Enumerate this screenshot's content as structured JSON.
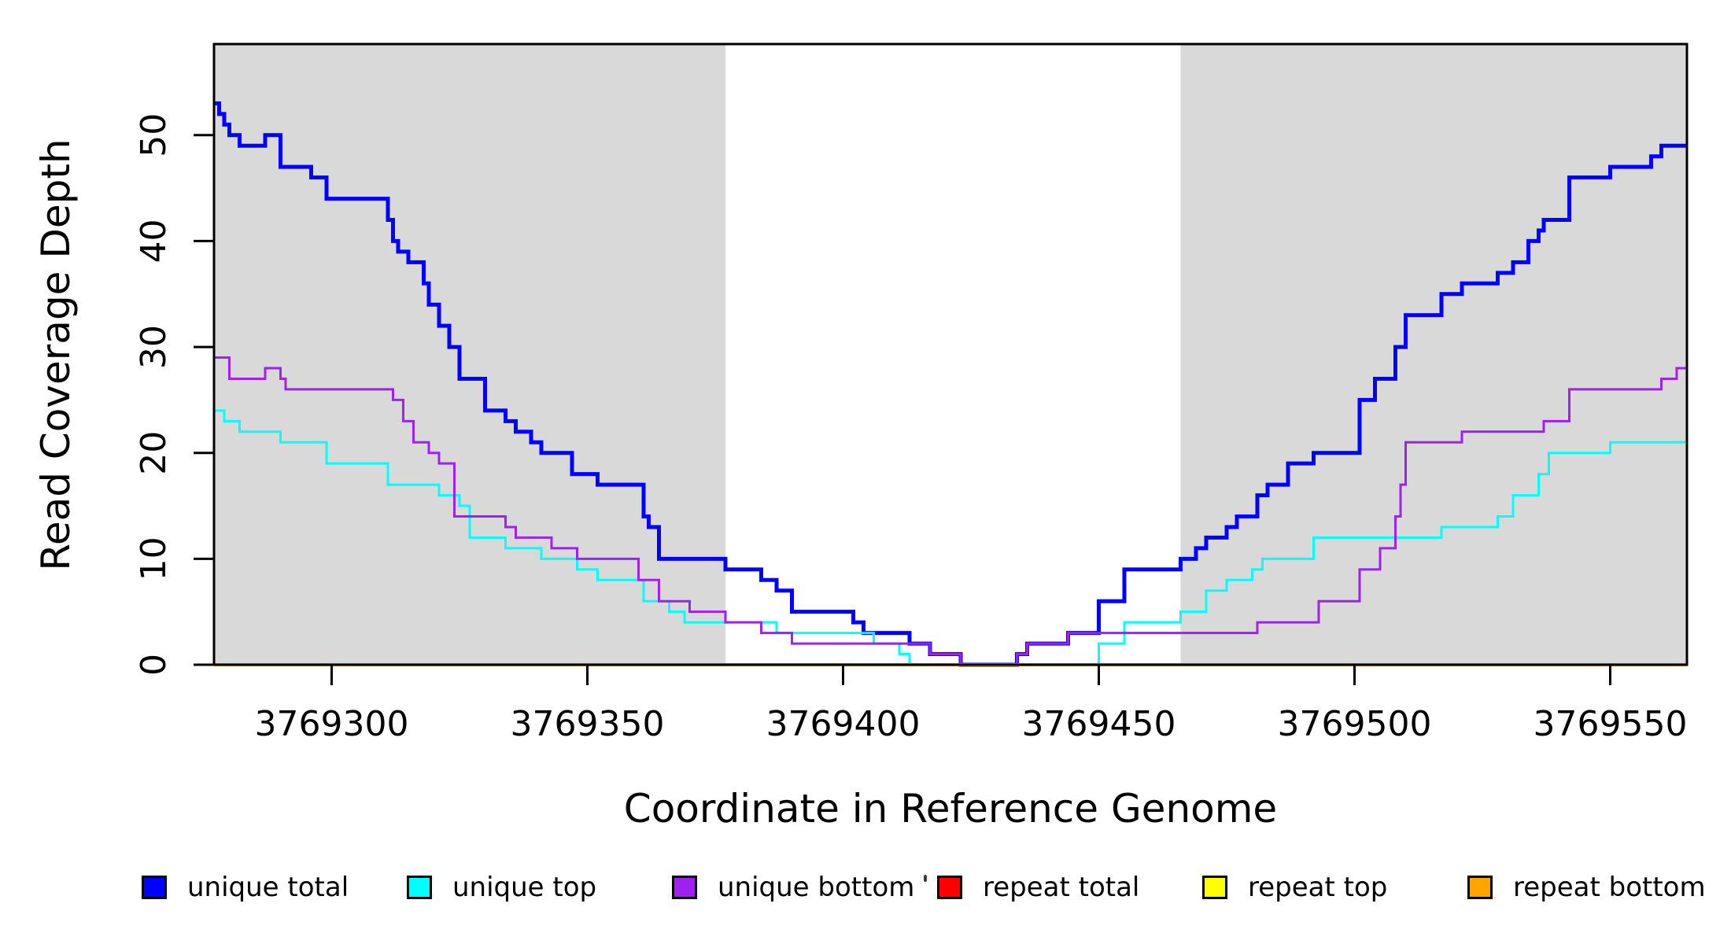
{
  "figure": {
    "xlabel": "Coordinate in Reference Genome",
    "ylabel": "Read Coverage Depth"
  },
  "chart_data": {
    "type": "line",
    "subtype": "step",
    "title": "",
    "xlabel": "Coordinate in Reference Genome",
    "ylabel": "Read Coverage Depth",
    "grid": false,
    "legend_position": "bottom",
    "xlim": [
      3769277,
      3769565
    ],
    "ylim": [
      0,
      58.6
    ],
    "x_ticks": [
      3769300,
      3769350,
      3769400,
      3769450,
      3769500,
      3769550
    ],
    "y_ticks": [
      0,
      10,
      20,
      30,
      40,
      50
    ],
    "background_color": "#ffffff",
    "shaded_regions": [
      {
        "x0": 3769277,
        "x1": 3769377,
        "color": "#D9D9D9"
      },
      {
        "x0": 3769466,
        "x1": 3769565,
        "color": "#D9D9D9"
      }
    ],
    "series": [
      {
        "name": "unique total",
        "color": "#0000FF",
        "width": 5,
        "points": [
          [
            3769277,
            53
          ],
          [
            3769278,
            52
          ],
          [
            3769279,
            51
          ],
          [
            3769280,
            50
          ],
          [
            3769282,
            49
          ],
          [
            3769287,
            50
          ],
          [
            3769290,
            47
          ],
          [
            3769296,
            46
          ],
          [
            3769299,
            44
          ],
          [
            3769311,
            42
          ],
          [
            3769312,
            40
          ],
          [
            3769313,
            39
          ],
          [
            3769315,
            38
          ],
          [
            3769318,
            36
          ],
          [
            3769319,
            34
          ],
          [
            3769321,
            32
          ],
          [
            3769323,
            30
          ],
          [
            3769325,
            27
          ],
          [
            3769330,
            24
          ],
          [
            3769334,
            23
          ],
          [
            3769336,
            22
          ],
          [
            3769339,
            21
          ],
          [
            3769341,
            20
          ],
          [
            3769347,
            18
          ],
          [
            3769352,
            17
          ],
          [
            3769361,
            14
          ],
          [
            3769362,
            13
          ],
          [
            3769364,
            10
          ],
          [
            3769377,
            9
          ],
          [
            3769384,
            8
          ],
          [
            3769387,
            7
          ],
          [
            3769390,
            5
          ],
          [
            3769402,
            4
          ],
          [
            3769404,
            3
          ],
          [
            3769413,
            2
          ],
          [
            3769417,
            1
          ],
          [
            3769423,
            0
          ],
          [
            3769434,
            1
          ],
          [
            3769436,
            2
          ],
          [
            3769444,
            3
          ],
          [
            3769450,
            6
          ],
          [
            3769455,
            9
          ],
          [
            3769466,
            10
          ],
          [
            3769469,
            11
          ],
          [
            3769471,
            12
          ],
          [
            3769475,
            13
          ],
          [
            3769477,
            14
          ],
          [
            3769481,
            16
          ],
          [
            3769483,
            17
          ],
          [
            3769487,
            19
          ],
          [
            3769492,
            20
          ],
          [
            3769501,
            25
          ],
          [
            3769504,
            27
          ],
          [
            3769508,
            30
          ],
          [
            3769510,
            33
          ],
          [
            3769517,
            35
          ],
          [
            3769521,
            36
          ],
          [
            3769528,
            37
          ],
          [
            3769531,
            38
          ],
          [
            3769534,
            40
          ],
          [
            3769536,
            41
          ],
          [
            3769537,
            42
          ],
          [
            3769542,
            46
          ],
          [
            3769550,
            47
          ],
          [
            3769558,
            48
          ],
          [
            3769560,
            49
          ],
          [
            3769565,
            49
          ]
        ]
      },
      {
        "name": "unique top",
        "color": "#00FFFF",
        "width": 3,
        "points": [
          [
            3769277,
            24
          ],
          [
            3769279,
            23
          ],
          [
            3769282,
            22
          ],
          [
            3769290,
            21
          ],
          [
            3769299,
            19
          ],
          [
            3769311,
            17
          ],
          [
            3769321,
            16
          ],
          [
            3769325,
            15
          ],
          [
            3769327,
            12
          ],
          [
            3769334,
            11
          ],
          [
            3769341,
            10
          ],
          [
            3769348,
            9
          ],
          [
            3769352,
            8
          ],
          [
            3769361,
            6
          ],
          [
            3769366,
            5
          ],
          [
            3769369,
            4
          ],
          [
            3769387,
            3
          ],
          [
            3769406,
            2
          ],
          [
            3769411,
            1
          ],
          [
            3769413,
            0
          ],
          [
            3769450,
            2
          ],
          [
            3769455,
            4
          ],
          [
            3769466,
            5
          ],
          [
            3769471,
            7
          ],
          [
            3769475,
            8
          ],
          [
            3769480,
            9
          ],
          [
            3769482,
            10
          ],
          [
            3769492,
            12
          ],
          [
            3769517,
            13
          ],
          [
            3769528,
            14
          ],
          [
            3769531,
            16
          ],
          [
            3769536,
            18
          ],
          [
            3769538,
            20
          ],
          [
            3769550,
            21
          ],
          [
            3769565,
            21
          ]
        ]
      },
      {
        "name": "unique bottom",
        "color": "#A020F0",
        "width": 3,
        "points": [
          [
            3769277,
            29
          ],
          [
            3769280,
            27
          ],
          [
            3769287,
            28
          ],
          [
            3769290,
            27
          ],
          [
            3769291,
            26
          ],
          [
            3769312,
            25
          ],
          [
            3769314,
            23
          ],
          [
            3769316,
            21
          ],
          [
            3769319,
            20
          ],
          [
            3769321,
            19
          ],
          [
            3769324,
            14
          ],
          [
            3769334,
            13
          ],
          [
            3769336,
            12
          ],
          [
            3769343,
            11
          ],
          [
            3769348,
            10
          ],
          [
            3769360,
            8
          ],
          [
            3769364,
            6
          ],
          [
            3769370,
            5
          ],
          [
            3769377,
            4
          ],
          [
            3769384,
            3
          ],
          [
            3769390,
            2
          ],
          [
            3769417,
            1
          ],
          [
            3769423,
            0
          ],
          [
            3769434,
            1
          ],
          [
            3769436,
            2
          ],
          [
            3769444,
            3
          ],
          [
            3769481,
            4
          ],
          [
            3769493,
            6
          ],
          [
            3769501,
            9
          ],
          [
            3769505,
            11
          ],
          [
            3769508,
            14
          ],
          [
            3769509,
            17
          ],
          [
            3769510,
            21
          ],
          [
            3769521,
            22
          ],
          [
            3769537,
            23
          ],
          [
            3769542,
            26
          ],
          [
            3769560,
            27
          ],
          [
            3769563,
            28
          ],
          [
            3769565,
            28
          ]
        ]
      },
      {
        "name": "repeat total",
        "color": "#FF0000",
        "width": 3,
        "points": [
          [
            3769277,
            0
          ],
          [
            3769565,
            0
          ]
        ]
      },
      {
        "name": "repeat top",
        "color": "#FFFF00",
        "width": 3,
        "points": [
          [
            3769277,
            0
          ],
          [
            3769565,
            0
          ]
        ]
      },
      {
        "name": "repeat bottom",
        "color": "#FFA500",
        "width": 4,
        "points": [
          [
            3769277,
            0
          ],
          [
            3769565,
            0
          ]
        ]
      }
    ]
  }
}
